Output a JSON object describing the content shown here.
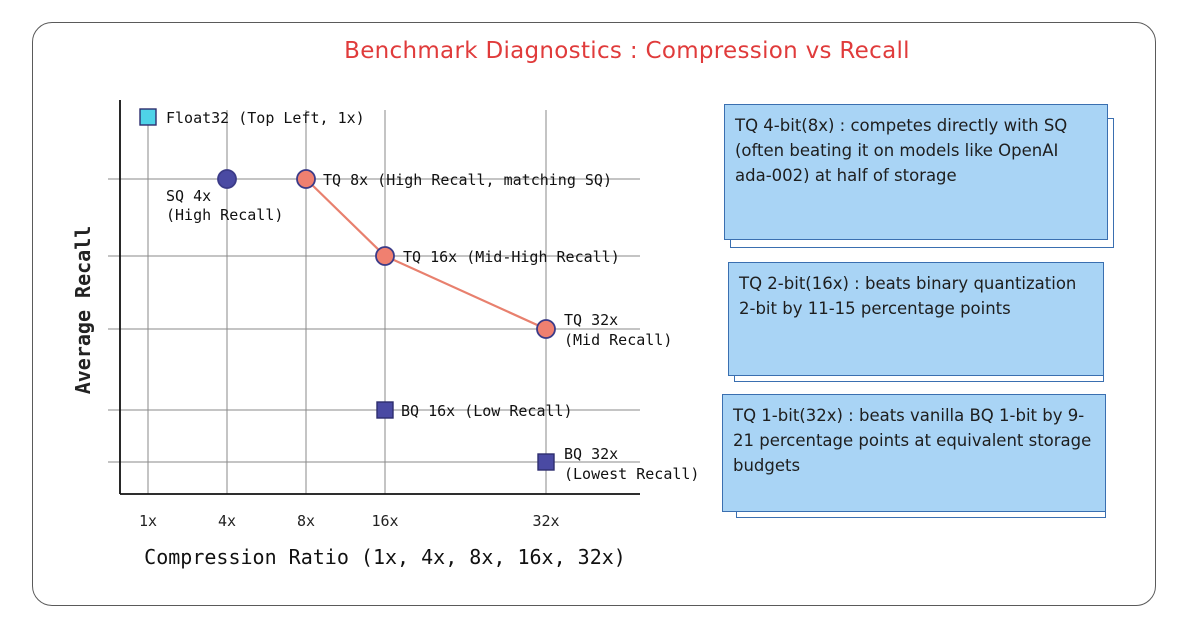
{
  "title": "Benchmark Diagnostics : Compression vs Recall",
  "chart_data": {
    "type": "scatter",
    "xlabel": "Compression Ratio (1x, 4x, 8x, 16x, 32x)",
    "ylabel": "Average Recall",
    "x_ticks": [
      "1x",
      "4x",
      "8x",
      "16x",
      "32x"
    ],
    "points": [
      {
        "x": "1x",
        "label": "Float32 (Top Left, 1x)",
        "marker": "square",
        "color": "#4fd3e8"
      },
      {
        "x": "4x",
        "label": "SQ 4x (High Recall)",
        "marker": "circle",
        "color": "#4a4aa3"
      },
      {
        "x": "8x",
        "label": "TQ 8x (High Recall, matching SQ)",
        "marker": "circle",
        "color": "#f08070",
        "series": "TQ"
      },
      {
        "x": "16x",
        "label": "TQ 16x (Mid-High Recall)",
        "marker": "circle",
        "color": "#f08070",
        "series": "TQ"
      },
      {
        "x": "32x",
        "label": "TQ 32x (Mid Recall)",
        "marker": "circle",
        "color": "#f08070",
        "series": "TQ"
      },
      {
        "x": "16x",
        "label": "BQ 16x (Low Recall)",
        "marker": "square",
        "color": "#4a4aa3"
      },
      {
        "x": "32x",
        "label": "BQ 32x (Lowest Recall)",
        "marker": "square",
        "color": "#4a4aa3"
      }
    ],
    "line_color": "#e8806e"
  },
  "cards": [
    {
      "text": "TQ 4-bit(8x) : competes directly with SQ (often beating it on models like OpenAI ada-002) at half of storage"
    },
    {
      "text": "TQ 2-bit(16x) : beats binary quantization 2-bit by 11-15 percentage points"
    },
    {
      "text": "TQ 1-bit(32x) : beats vanilla BQ 1-bit by 9-21 percentage points at equivalent storage budgets"
    }
  ]
}
